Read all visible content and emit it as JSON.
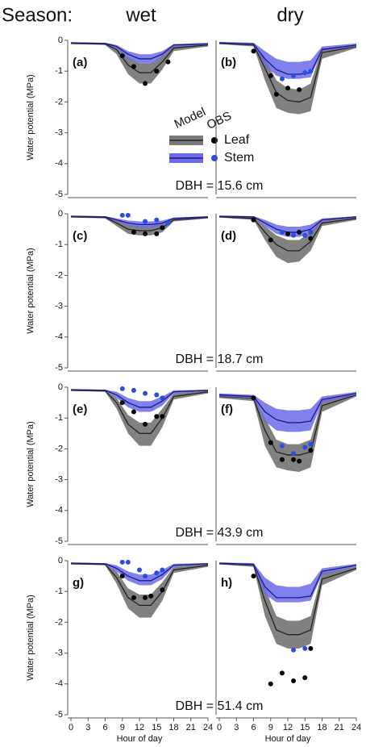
{
  "header": {
    "label": "Season:",
    "columns": [
      "wet",
      "dry"
    ]
  },
  "chart_data": [
    {
      "type": "line",
      "panel_label": "(a)",
      "annotation": "DBH = 15.6 cm",
      "ylabel": "Water potential (MPa)",
      "legend": true,
      "legend_headers": [
        "Model",
        "OBS"
      ],
      "xlim": [
        0,
        24
      ],
      "ylim": [
        -5,
        0
      ],
      "yticks": [
        0,
        -1,
        -2,
        -3,
        -4,
        -5
      ],
      "x": [
        0,
        6,
        8,
        10,
        12,
        14,
        16,
        18,
        24
      ],
      "series": [
        {
          "name": "Leaf",
          "color": "#222222",
          "band_color": "#7a7a7a",
          "values": [
            -0.1,
            -0.12,
            -0.3,
            -0.8,
            -1.05,
            -1.05,
            -0.7,
            -0.25,
            -0.15
          ],
          "lower": [
            -0.12,
            -0.15,
            -0.45,
            -1.1,
            -1.4,
            -1.4,
            -0.95,
            -0.35,
            -0.2
          ],
          "upper": [
            -0.08,
            -0.1,
            -0.2,
            -0.55,
            -0.75,
            -0.75,
            -0.5,
            -0.18,
            -0.1
          ],
          "obs_color": "#000000",
          "obs_x": [
            9,
            11,
            13,
            15,
            17
          ],
          "obs": [
            -0.5,
            -0.85,
            -1.4,
            -1.0,
            -0.7
          ]
        },
        {
          "name": "Stem",
          "color": "#1a1a80",
          "band_color": "#6b6bea",
          "values": [
            -0.08,
            -0.1,
            -0.2,
            -0.45,
            -0.6,
            -0.6,
            -0.45,
            -0.15,
            -0.12
          ],
          "lower": [
            -0.1,
            -0.12,
            -0.25,
            -0.6,
            -0.75,
            -0.75,
            -0.55,
            -0.2,
            -0.15
          ],
          "upper": [
            -0.06,
            -0.08,
            -0.15,
            -0.35,
            -0.45,
            -0.45,
            -0.35,
            -0.12,
            -0.08
          ],
          "obs_color": "#2b4ee0",
          "obs_x": [],
          "obs": []
        }
      ]
    },
    {
      "type": "line",
      "panel_label": "(b)",
      "xlim": [
        0,
        24
      ],
      "ylim": [
        -5,
        0
      ],
      "x": [
        0,
        6,
        8,
        10,
        12,
        14,
        16,
        18,
        24
      ],
      "series": [
        {
          "color": "#222222",
          "band_color": "#7a7a7a",
          "values": [
            -0.1,
            -0.15,
            -0.9,
            -1.7,
            -1.95,
            -2.0,
            -1.85,
            -0.4,
            -0.2
          ],
          "lower": [
            -0.12,
            -0.2,
            -1.3,
            -2.2,
            -2.35,
            -2.4,
            -2.3,
            -0.6,
            -0.25
          ],
          "upper": [
            -0.08,
            -0.1,
            -0.6,
            -1.3,
            -1.55,
            -1.6,
            -1.4,
            -0.25,
            -0.15
          ],
          "obs_color": "#000000",
          "obs_x": [
            6,
            9,
            10,
            12,
            14
          ],
          "obs": [
            -0.35,
            -1.15,
            -1.75,
            -1.55,
            -1.6
          ]
        },
        {
          "color": "#1a1a80",
          "band_color": "#6b6bea",
          "values": [
            -0.08,
            -0.12,
            -0.6,
            -0.95,
            -1.1,
            -1.1,
            -1.05,
            -0.3,
            -0.15
          ],
          "lower": [
            -0.1,
            -0.15,
            -0.8,
            -1.15,
            -1.25,
            -1.25,
            -1.2,
            -0.35,
            -0.2
          ],
          "upper": [
            -0.05,
            -0.08,
            -0.35,
            -0.6,
            -0.7,
            -0.7,
            -0.65,
            -0.2,
            -0.1
          ],
          "obs_color": "#2b4ee0",
          "obs_x": [
            11,
            13,
            15,
            16
          ],
          "obs": [
            -1.25,
            -1.15,
            -1.05,
            -1.0
          ]
        }
      ]
    },
    {
      "type": "line",
      "panel_label": "(c)",
      "annotation": "DBH = 18.7 cm",
      "ylabel": "Water potential (MPa)",
      "xlim": [
        0,
        24
      ],
      "ylim": [
        -5,
        0
      ],
      "yticks": [
        0,
        -1,
        -2,
        -3,
        -4,
        -5
      ],
      "x": [
        0,
        6,
        8,
        10,
        12,
        14,
        16,
        18,
        24
      ],
      "series": [
        {
          "color": "#222222",
          "band_color": "#7a7a7a",
          "values": [
            -0.1,
            -0.12,
            -0.3,
            -0.5,
            -0.55,
            -0.55,
            -0.45,
            -0.2,
            -0.12
          ],
          "lower": [
            -0.12,
            -0.15,
            -0.4,
            -0.65,
            -0.7,
            -0.7,
            -0.6,
            -0.25,
            -0.15
          ],
          "upper": [
            -0.08,
            -0.1,
            -0.2,
            -0.35,
            -0.4,
            -0.4,
            -0.3,
            -0.15,
            -0.1
          ],
          "obs_color": "#000000",
          "obs_x": [
            11,
            13,
            15,
            16
          ],
          "obs": [
            -0.6,
            -0.65,
            -0.65,
            -0.45
          ]
        },
        {
          "color": "#1a1a80",
          "band_color": "#6b6bea",
          "values": [
            -0.08,
            -0.1,
            -0.2,
            -0.3,
            -0.35,
            -0.35,
            -0.3,
            -0.15,
            -0.1
          ],
          "lower": [
            -0.1,
            -0.12,
            -0.25,
            -0.38,
            -0.45,
            -0.45,
            -0.38,
            -0.18,
            -0.12
          ],
          "upper": [
            -0.06,
            -0.08,
            -0.15,
            -0.22,
            -0.25,
            -0.25,
            -0.22,
            -0.12,
            -0.08
          ],
          "obs_color": "#2b4ee0",
          "obs_x": [
            9,
            10,
            13,
            15,
            17
          ],
          "obs": [
            -0.05,
            -0.05,
            -0.25,
            -0.2,
            -0.3
          ]
        }
      ]
    },
    {
      "type": "line",
      "panel_label": "(d)",
      "xlim": [
        0,
        24
      ],
      "ylim": [
        -5,
        0
      ],
      "x": [
        0,
        6,
        8,
        10,
        12,
        14,
        16,
        18,
        24
      ],
      "series": [
        {
          "color": "#222222",
          "band_color": "#7a7a7a",
          "values": [
            -0.1,
            -0.15,
            -0.6,
            -1.0,
            -1.2,
            -1.2,
            -0.9,
            -0.3,
            -0.15
          ],
          "lower": [
            -0.12,
            -0.2,
            -0.85,
            -1.4,
            -1.6,
            -1.55,
            -1.2,
            -0.4,
            -0.2
          ],
          "upper": [
            -0.08,
            -0.1,
            -0.4,
            -0.7,
            -0.85,
            -0.85,
            -0.6,
            -0.2,
            -0.1
          ],
          "obs_color": "#000000",
          "obs_x": [
            6,
            9,
            12,
            14,
            16
          ],
          "obs": [
            -0.2,
            -0.85,
            -0.65,
            -0.6,
            -0.8
          ]
        },
        {
          "color": "#1a1a80",
          "band_color": "#6b6bea",
          "values": [
            -0.08,
            -0.1,
            -0.3,
            -0.5,
            -0.6,
            -0.6,
            -0.5,
            -0.2,
            -0.1
          ],
          "lower": [
            -0.1,
            -0.12,
            -0.4,
            -0.65,
            -0.75,
            -0.75,
            -0.65,
            -0.25,
            -0.12
          ],
          "upper": [
            -0.06,
            -0.08,
            -0.2,
            -0.35,
            -0.42,
            -0.42,
            -0.35,
            -0.15,
            -0.08
          ],
          "obs_color": "#2b4ee0",
          "obs_x": [
            11,
            13,
            15,
            16
          ],
          "obs": [
            -0.6,
            -0.7,
            -0.7,
            -0.6
          ]
        }
      ]
    },
    {
      "type": "line",
      "panel_label": "(e)",
      "annotation": "DBH = 43.9 cm",
      "ylabel": "Water potential (MPa)",
      "xlim": [
        0,
        24
      ],
      "ylim": [
        -5,
        0
      ],
      "yticks": [
        0,
        -1,
        -2,
        -3,
        -4,
        -5
      ],
      "x": [
        0,
        6,
        8,
        10,
        12,
        14,
        16,
        18,
        24
      ],
      "series": [
        {
          "color": "#222222",
          "band_color": "#7a7a7a",
          "values": [
            -0.1,
            -0.12,
            -0.5,
            -1.2,
            -1.5,
            -1.5,
            -1.0,
            -0.3,
            -0.15
          ],
          "lower": [
            -0.12,
            -0.15,
            -0.7,
            -1.5,
            -1.9,
            -1.9,
            -1.3,
            -0.4,
            -0.2
          ],
          "upper": [
            -0.08,
            -0.1,
            -0.35,
            -0.9,
            -1.15,
            -1.15,
            -0.7,
            -0.2,
            -0.1
          ],
          "obs_color": "#000000",
          "obs_x": [
            9,
            11,
            13,
            15,
            16
          ],
          "obs": [
            -0.5,
            -0.8,
            -1.2,
            -0.95,
            -0.95
          ]
        },
        {
          "color": "#1a1a80",
          "band_color": "#6b6bea",
          "values": [
            -0.08,
            -0.1,
            -0.25,
            -0.5,
            -0.65,
            -0.65,
            -0.45,
            -0.15,
            -0.1
          ],
          "lower": [
            -0.1,
            -0.12,
            -0.35,
            -0.65,
            -0.8,
            -0.8,
            -0.6,
            -0.2,
            -0.12
          ],
          "upper": [
            -0.06,
            -0.08,
            -0.15,
            -0.35,
            -0.45,
            -0.45,
            -0.3,
            -0.1,
            -0.08
          ],
          "obs_color": "#2b4ee0",
          "obs_x": [
            9,
            11,
            13,
            15,
            16
          ],
          "obs": [
            -0.05,
            -0.1,
            -0.2,
            -0.25,
            -0.35
          ]
        }
      ]
    },
    {
      "type": "line",
      "panel_label": "(f)",
      "xlim": [
        0,
        24
      ],
      "ylim": [
        -5,
        0
      ],
      "x": [
        0,
        6,
        8,
        10,
        12,
        14,
        16,
        18,
        24
      ],
      "series": [
        {
          "color": "#222222",
          "band_color": "#7a7a7a",
          "values": [
            -0.3,
            -0.35,
            -1.4,
            -2.1,
            -2.2,
            -2.2,
            -2.1,
            -0.6,
            -0.25
          ],
          "lower": [
            -0.35,
            -0.45,
            -1.9,
            -2.6,
            -2.7,
            -2.75,
            -2.6,
            -0.8,
            -0.3
          ],
          "upper": [
            -0.25,
            -0.3,
            -1.0,
            -1.7,
            -1.85,
            -1.85,
            -1.7,
            -0.4,
            -0.2
          ],
          "obs_color": "#000000",
          "obs_x": [
            6,
            9,
            11,
            13,
            14,
            16
          ],
          "obs": [
            -0.35,
            -1.8,
            -2.35,
            -2.35,
            -2.4,
            -2.05
          ]
        },
        {
          "color": "#1a1a80",
          "band_color": "#6b6bea",
          "values": [
            -0.25,
            -0.3,
            -0.8,
            -1.05,
            -1.15,
            -1.15,
            -1.1,
            -0.4,
            -0.2
          ],
          "lower": [
            -0.3,
            -0.35,
            -1.1,
            -1.4,
            -1.45,
            -1.45,
            -1.4,
            -0.5,
            -0.25
          ],
          "upper": [
            -0.2,
            -0.25,
            -0.5,
            -0.7,
            -0.75,
            -0.75,
            -0.7,
            -0.3,
            -0.15
          ],
          "obs_color": "#2b4ee0",
          "obs_x": [
            11,
            13,
            15,
            16
          ],
          "obs": [
            -1.9,
            -2.15,
            -1.95,
            -1.85
          ]
        }
      ]
    },
    {
      "type": "line",
      "panel_label": "g)",
      "annotation": "DBH = 51.4 cm",
      "ylabel": "Water potential (MPa)",
      "xlabel": "Hour of day",
      "xlim": [
        0,
        24
      ],
      "xticks": [
        0,
        3,
        6,
        9,
        12,
        15,
        18,
        21,
        24
      ],
      "ylim": [
        -5,
        0
      ],
      "yticks": [
        0,
        -1,
        -2,
        -3,
        -4,
        -5
      ],
      "x": [
        0,
        6,
        8,
        10,
        12,
        14,
        16,
        18,
        24
      ],
      "series": [
        {
          "color": "#222222",
          "band_color": "#7a7a7a",
          "values": [
            -0.1,
            -0.12,
            -0.55,
            -1.2,
            -1.45,
            -1.45,
            -1.0,
            -0.3,
            -0.15
          ],
          "lower": [
            -0.12,
            -0.15,
            -0.75,
            -1.55,
            -1.85,
            -1.85,
            -1.3,
            -0.4,
            -0.2
          ],
          "upper": [
            -0.08,
            -0.1,
            -0.35,
            -0.9,
            -1.1,
            -1.1,
            -0.7,
            -0.2,
            -0.1
          ],
          "obs_color": "#000000",
          "obs_x": [
            9,
            11,
            13,
            14,
            16
          ],
          "obs": [
            -0.5,
            -1.2,
            -1.2,
            -1.15,
            -0.95
          ]
        },
        {
          "color": "#1a1a80",
          "band_color": "#6b6bea",
          "values": [
            -0.08,
            -0.1,
            -0.25,
            -0.5,
            -0.65,
            -0.65,
            -0.45,
            -0.15,
            -0.1
          ],
          "lower": [
            -0.1,
            -0.12,
            -0.35,
            -0.65,
            -0.8,
            -0.8,
            -0.6,
            -0.2,
            -0.12
          ],
          "upper": [
            -0.06,
            -0.08,
            -0.15,
            -0.35,
            -0.45,
            -0.45,
            -0.3,
            -0.1,
            -0.08
          ],
          "obs_color": "#2b4ee0",
          "obs_x": [
            9,
            10,
            12,
            13,
            15,
            16
          ],
          "obs": [
            -0.05,
            -0.05,
            -0.3,
            -0.5,
            -0.4,
            -0.3
          ]
        }
      ]
    },
    {
      "type": "line",
      "panel_label": "h)",
      "xlabel": "Hour of day",
      "xlim": [
        0,
        24
      ],
      "xticks": [
        0,
        3,
        6,
        9,
        12,
        15,
        18,
        21,
        24
      ],
      "ylim": [
        -5,
        0
      ],
      "x": [
        0,
        6,
        8,
        10,
        12,
        14,
        16,
        18,
        24
      ],
      "series": [
        {
          "color": "#222222",
          "band_color": "#7a7a7a",
          "values": [
            -0.1,
            -0.15,
            -1.3,
            -2.25,
            -2.4,
            -2.4,
            -2.25,
            -0.6,
            -0.25
          ],
          "lower": [
            -0.12,
            -0.2,
            -1.8,
            -2.7,
            -2.85,
            -2.85,
            -2.7,
            -0.8,
            -0.3
          ],
          "upper": [
            -0.08,
            -0.1,
            -0.9,
            -1.8,
            -1.95,
            -1.95,
            -1.8,
            -0.4,
            -0.2
          ],
          "obs_color": "#000000",
          "obs_x": [
            6,
            9,
            11,
            13,
            15,
            16
          ],
          "obs": [
            -0.5,
            -4.0,
            -3.65,
            -3.9,
            -3.8,
            -2.85
          ]
        },
        {
          "color": "#1a1a80",
          "band_color": "#6b6bea",
          "values": [
            -0.08,
            -0.12,
            -0.85,
            -1.2,
            -1.2,
            -1.2,
            -1.15,
            -0.35,
            -0.15
          ],
          "lower": [
            -0.1,
            -0.15,
            -1.1,
            -1.35,
            -1.35,
            -1.35,
            -1.3,
            -0.45,
            -0.2
          ],
          "upper": [
            -0.06,
            -0.08,
            -0.55,
            -0.8,
            -0.85,
            -0.85,
            -0.75,
            -0.25,
            -0.1
          ],
          "obs_color": "#2b4ee0",
          "obs_x": [
            13,
            15
          ],
          "obs": [
            -2.9,
            -2.85
          ]
        }
      ]
    }
  ]
}
